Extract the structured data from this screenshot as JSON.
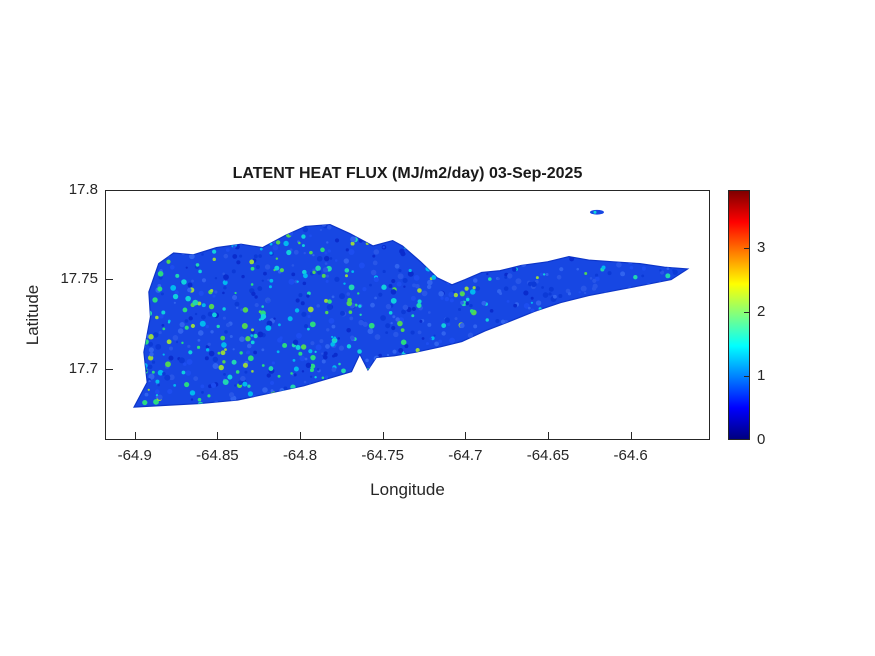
{
  "figure": {
    "title": "LATENT HEAT FLUX (MJ/m2/day) 03-Sep-2025",
    "xlabel": "Longitude",
    "ylabel": "Latitude"
  },
  "axes": {
    "x_range": [
      -64.918,
      -64.552
    ],
    "y_range": [
      17.66,
      17.8
    ],
    "x_ticks": [
      {
        "label": "-64.9",
        "value": -64.9
      },
      {
        "label": "-64.85",
        "value": -64.85
      },
      {
        "label": "-64.8",
        "value": -64.8
      },
      {
        "label": "-64.75",
        "value": -64.75
      },
      {
        "label": "-64.7",
        "value": -64.7
      },
      {
        "label": "-64.65",
        "value": -64.65
      },
      {
        "label": "-64.6",
        "value": -64.6
      }
    ],
    "y_ticks": [
      {
        "label": "17.8",
        "value": 17.8
      },
      {
        "label": "17.75",
        "value": 17.75
      },
      {
        "label": "17.7",
        "value": 17.7
      }
    ]
  },
  "colorbar": {
    "range": [
      0,
      3.9
    ],
    "ticks": [
      {
        "label": "0",
        "value": 0
      },
      {
        "label": "1",
        "value": 1
      },
      {
        "label": "2",
        "value": 2
      },
      {
        "label": "3",
        "value": 3
      }
    ],
    "colormap": "jet",
    "colormap_stops": [
      [
        "#00007f",
        0
      ],
      [
        "#0000ff",
        12.5
      ],
      [
        "#00ffff",
        37.5
      ],
      [
        "#ffff00",
        62.5
      ],
      [
        "#ff0000",
        87.5
      ],
      [
        "#7f0000",
        100
      ]
    ]
  },
  "style": {
    "base_fill": "#1747e3",
    "edge": "#0d35c8",
    "speckle_blue": [
      "#0a2ccc",
      "#1e4ff0",
      "#3366f0",
      "#0c3ad6",
      "#2a58e8"
    ],
    "speckle_bright": [
      "#00c0f0",
      "#10d8dc",
      "#22dfae",
      "#2ce37c",
      "#55dd4d",
      "#9fdf38"
    ],
    "axis_color": "#262626",
    "text_color": "#262626"
  },
  "chart_data": {
    "type": "heatmap",
    "title": "LATENT HEAT FLUX (MJ/m2/day) 03-Sep-2025",
    "xlabel": "Longitude",
    "ylabel": "Latitude",
    "xlim": [
      -64.918,
      -64.552
    ],
    "ylim": [
      17.66,
      17.8
    ],
    "x_tick_values": [
      -64.9,
      -64.85,
      -64.8,
      -64.75,
      -64.7,
      -64.65,
      -64.6
    ],
    "y_tick_values": [
      17.8,
      17.75,
      17.7
    ],
    "colorbar_range": [
      0,
      3.9
    ],
    "colorbar_tick_values": [
      0,
      1,
      2,
      3
    ],
    "colormap": "jet",
    "legend_position": "right-colorbar",
    "grid": false,
    "region": "St. Croix-shaped island landmass rendered as a dense pixel field",
    "value_summary": {
      "dominant_range_mj_m2_day": [
        0.4,
        1.1
      ],
      "speckle_range_mj_m2_day": [
        1.2,
        2.6
      ],
      "description": "Flux is mostly 0.5-1 MJ/m2/day (blue) across the island with scattered cyan/green speckles around 1.5-2.5, denser toward the western end; no values reach the orange/red part of the scale."
    },
    "outline_lonlat": [
      [
        -64.901,
        17.678
      ],
      [
        -64.893,
        17.692
      ],
      [
        -64.895,
        17.709
      ],
      [
        -64.891,
        17.729
      ],
      [
        -64.892,
        17.743
      ],
      [
        -64.886,
        17.759
      ],
      [
        -64.877,
        17.765
      ],
      [
        -64.865,
        17.764
      ],
      [
        -64.851,
        17.768
      ],
      [
        -64.836,
        17.77
      ],
      [
        -64.823,
        17.768
      ],
      [
        -64.809,
        17.775
      ],
      [
        -64.797,
        17.78
      ],
      [
        -64.782,
        17.781
      ],
      [
        -64.77,
        17.776
      ],
      [
        -64.756,
        17.769
      ],
      [
        -64.744,
        17.772
      ],
      [
        -64.738,
        17.769
      ],
      [
        -64.727,
        17.76
      ],
      [
        -64.717,
        17.751
      ],
      [
        -64.708,
        17.747
      ],
      [
        -64.7,
        17.75
      ],
      [
        -64.69,
        17.754
      ],
      [
        -64.679,
        17.755
      ],
      [
        -64.666,
        17.758
      ],
      [
        -64.65,
        17.76
      ],
      [
        -64.637,
        17.763
      ],
      [
        -64.625,
        17.761
      ],
      [
        -64.61,
        17.76
      ],
      [
        -64.594,
        17.759
      ],
      [
        -64.579,
        17.757
      ],
      [
        -64.565,
        17.756
      ],
      [
        -64.575,
        17.75
      ],
      [
        -64.591,
        17.747
      ],
      [
        -64.608,
        17.744
      ],
      [
        -64.625,
        17.741
      ],
      [
        -64.642,
        17.737
      ],
      [
        -64.658,
        17.732
      ],
      [
        -64.674,
        17.726
      ],
      [
        -64.688,
        17.721
      ],
      [
        -64.702,
        17.715
      ],
      [
        -64.715,
        17.712
      ],
      [
        -64.73,
        17.709
      ],
      [
        -64.743,
        17.707
      ],
      [
        -64.754,
        17.706
      ],
      [
        -64.759,
        17.699
      ],
      [
        -64.764,
        17.708
      ],
      [
        -64.769,
        17.698
      ],
      [
        -64.78,
        17.695
      ],
      [
        -64.798,
        17.69
      ],
      [
        -64.818,
        17.686
      ],
      [
        -64.838,
        17.682
      ],
      [
        -64.861,
        17.68
      ],
      [
        -64.882,
        17.679
      ]
    ],
    "islet_lonlat": {
      "lon": -64.62,
      "lat": 17.788
    }
  }
}
